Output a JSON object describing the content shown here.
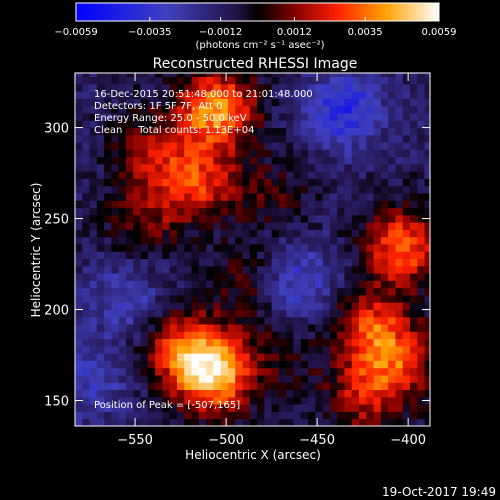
{
  "chart_data": {
    "type": "heatmap",
    "title": "Reconstructed RHESSI Image",
    "xlabel": "Heliocentric X (arcsec)",
    "ylabel": "Heliocentric Y (arcsec)",
    "xlim": [
      -583,
      -388
    ],
    "ylim": [
      136,
      330
    ],
    "x_ticks": [
      -550,
      -500,
      -450,
      -400
    ],
    "x_tick_labels": [
      "−550",
      "−500",
      "−450",
      "−400"
    ],
    "y_ticks": [
      150,
      200,
      250,
      300
    ],
    "y_tick_labels": [
      "150",
      "200",
      "250",
      "300"
    ],
    "colorbar": {
      "range": [
        -0.0059,
        0.0059
      ],
      "tick_values": [
        -0.0059,
        -0.0035,
        -0.0012,
        0.0012,
        0.0035,
        0.0059
      ],
      "tick_labels": [
        "−0.0059",
        "−0.0035",
        "−0.0012",
        "0.0012",
        "0.0035",
        "0.0059"
      ],
      "unit_label": "(photons cm⁻² s⁻¹ asec⁻²)"
    },
    "annotations": [
      "16-Dec-2015 20:51:48.000 to 21:01:48.000",
      "Detectors: 1F 5F 7F, Att 0",
      "Energy Range: 25.0 - 50.0 keV",
      "Clean     Total counts: 1.13E+04"
    ],
    "peak_label": "Position of Peak = [-507,165]",
    "grid": false,
    "sources": [
      {
        "x": -505,
        "y": 310,
        "amp": 0.0052
      },
      {
        "x": -515,
        "y": 270,
        "amp": 0.0034
      },
      {
        "x": -540,
        "y": 287,
        "amp": 0.0024
      },
      {
        "x": -545,
        "y": 250,
        "amp": 0.002
      },
      {
        "x": -403,
        "y": 235,
        "amp": 0.0044
      },
      {
        "x": -420,
        "y": 190,
        "amp": 0.0036
      },
      {
        "x": -405,
        "y": 170,
        "amp": 0.003
      },
      {
        "x": -425,
        "y": 152,
        "amp": 0.0026
      },
      {
        "x": -507,
        "y": 165,
        "amp": 0.0059
      },
      {
        "x": -525,
        "y": 180,
        "amp": 0.0034
      },
      {
        "x": -475,
        "y": 265,
        "amp": 0.0014
      },
      {
        "x": -490,
        "y": 215,
        "amp": 0.0016
      },
      {
        "x": -470,
        "y": 175,
        "amp": 0.0012
      },
      {
        "x": -555,
        "y": 205,
        "amp": -0.0018
      },
      {
        "x": -435,
        "y": 310,
        "amp": -0.003
      },
      {
        "x": -460,
        "y": 215,
        "amp": -0.0022
      },
      {
        "x": -575,
        "y": 160,
        "amp": -0.0016
      }
    ]
  },
  "footer": {
    "date": "19-Oct-2017 19:49"
  }
}
